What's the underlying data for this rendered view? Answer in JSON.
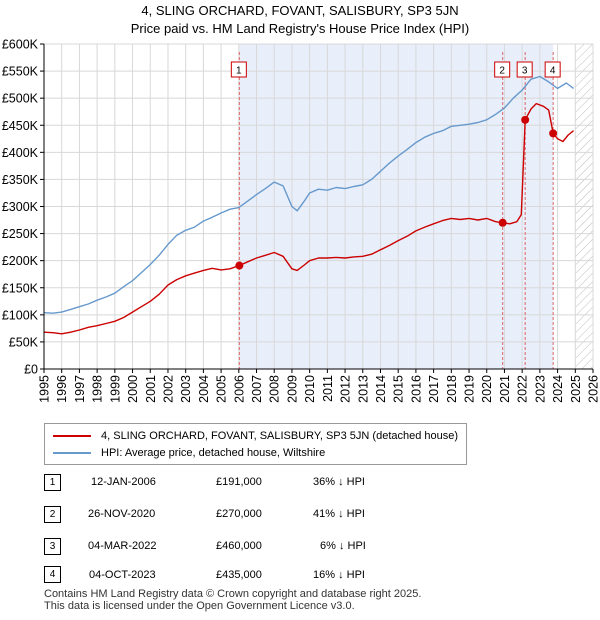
{
  "header": {
    "title_line1": "4, SLING ORCHARD, FOVANT, SALISBURY, SP3 5JN",
    "title_line2": "Price paid vs. HM Land Registry's House Price Index (HPI)"
  },
  "legend": {
    "red_label": "4, SLING ORCHARD, FOVANT, SALISBURY, SP3 5JN (detached house)",
    "blue_label": "HPI: Average price, detached house, Wiltshire"
  },
  "colors": {
    "red": "#cc0000",
    "blue": "#6699cc",
    "shade": "#e8eefa",
    "grid": "#d8d8d8",
    "marker_line": "#dd6666"
  },
  "transactions": [
    {
      "num": "1",
      "date": "12-JAN-2006",
      "price": "£191,000",
      "diff": "36% ↓ HPI"
    },
    {
      "num": "2",
      "date": "26-NOV-2020",
      "price": "£270,000",
      "diff": "41% ↓ HPI"
    },
    {
      "num": "3",
      "date": "04-MAR-2022",
      "price": "£460,000",
      "diff": "6% ↓ HPI"
    },
    {
      "num": "4",
      "date": "04-OCT-2023",
      "price": "£435,000",
      "diff": "16% ↓ HPI"
    }
  ],
  "footer": {
    "line1": "Contains HM Land Registry data © Crown copyright and database right 2025.",
    "line2": "This data is licensed under the Open Government Licence v3.0."
  },
  "chart_data": {
    "type": "line",
    "title": "4, SLING ORCHARD, FOVANT, SALISBURY, SP3 5JN",
    "subtitle": "Price paid vs. HM Land Registry's House Price Index (HPI)",
    "xlabel": "",
    "ylabel": "",
    "xlim": [
      1995,
      2026
    ],
    "ylim": [
      0,
      600000
    ],
    "x_ticks": [
      1995,
      1996,
      1997,
      1998,
      1999,
      2000,
      2001,
      2002,
      2003,
      2004,
      2005,
      2006,
      2007,
      2008,
      2009,
      2010,
      2011,
      2012,
      2013,
      2014,
      2015,
      2016,
      2017,
      2018,
      2019,
      2020,
      2021,
      2022,
      2023,
      2024,
      2025,
      2026
    ],
    "y_ticks": [
      0,
      50000,
      100000,
      150000,
      200000,
      250000,
      300000,
      350000,
      400000,
      450000,
      500000,
      550000,
      600000
    ],
    "y_tick_labels": [
      "£0",
      "£50K",
      "£100K",
      "£150K",
      "£200K",
      "£250K",
      "£300K",
      "£350K",
      "£400K",
      "£450K",
      "£500K",
      "£550K",
      "£600K"
    ],
    "grid": true,
    "shaded_period": [
      2006.03,
      2023.75
    ],
    "hatched_after": 2025.0,
    "sale_markers": [
      {
        "label": "1",
        "x": 2006.03,
        "y": 191000
      },
      {
        "label": "2",
        "x": 2020.9,
        "y": 270000
      },
      {
        "label": "3",
        "x": 2022.17,
        "y": 460000
      },
      {
        "label": "4",
        "x": 2023.75,
        "y": 435000
      }
    ],
    "series": [
      {
        "name": "4, SLING ORCHARD, FOVANT, SALISBURY, SP3 5JN (detached house)",
        "color": "#cc0000",
        "x": [
          1995,
          1995.5,
          1996,
          1996.5,
          1997,
          1997.5,
          1998,
          1998.5,
          1999,
          1999.5,
          2000,
          2000.5,
          2001,
          2001.5,
          2002,
          2002.5,
          2003,
          2003.5,
          2004,
          2004.5,
          2005,
          2005.5,
          2006.03,
          2006.5,
          2007,
          2007.5,
          2008,
          2008.5,
          2009,
          2009.3,
          2009.7,
          2010,
          2010.5,
          2011,
          2011.5,
          2012,
          2012.5,
          2013,
          2013.5,
          2014,
          2014.5,
          2015,
          2015.5,
          2016,
          2016.5,
          2017,
          2017.5,
          2018,
          2018.5,
          2019,
          2019.5,
          2020,
          2020.5,
          2020.9,
          2021.3,
          2021.7,
          2021.95,
          2022.17,
          2022.5,
          2022.8,
          2023.2,
          2023.5,
          2023.75,
          2024,
          2024.3,
          2024.6,
          2024.9
        ],
        "y": [
          68000,
          67000,
          65000,
          68000,
          72000,
          77000,
          80000,
          84000,
          88000,
          95000,
          105000,
          115000,
          125000,
          138000,
          155000,
          165000,
          172000,
          177000,
          182000,
          186000,
          183000,
          185000,
          191000,
          198000,
          205000,
          210000,
          215000,
          208000,
          185000,
          182000,
          192000,
          200000,
          205000,
          205000,
          206000,
          205000,
          207000,
          208000,
          212000,
          220000,
          228000,
          237000,
          245000,
          255000,
          262000,
          268000,
          274000,
          278000,
          276000,
          278000,
          275000,
          278000,
          272000,
          270000,
          268000,
          272000,
          285000,
          460000,
          480000,
          490000,
          485000,
          478000,
          435000,
          425000,
          420000,
          432000,
          440000
        ]
      },
      {
        "name": "HPI: Average price, detached house, Wiltshire",
        "color": "#6699cc",
        "x": [
          1995,
          1995.5,
          1996,
          1996.5,
          1997,
          1997.5,
          1998,
          1998.5,
          1999,
          1999.5,
          2000,
          2000.5,
          2001,
          2001.5,
          2002,
          2002.5,
          2003,
          2003.5,
          2004,
          2004.5,
          2005,
          2005.5,
          2006,
          2006.5,
          2007,
          2007.5,
          2008,
          2008.5,
          2009,
          2009.3,
          2009.7,
          2010,
          2010.5,
          2011,
          2011.5,
          2012,
          2012.5,
          2013,
          2013.5,
          2014,
          2014.5,
          2015,
          2015.5,
          2016,
          2016.5,
          2017,
          2017.5,
          2018,
          2018.5,
          2019,
          2019.5,
          2020,
          2020.5,
          2021,
          2021.5,
          2022,
          2022.5,
          2023,
          2023.5,
          2024,
          2024.5,
          2024.9
        ],
        "y": [
          104000,
          103000,
          105000,
          110000,
          115000,
          120000,
          127000,
          133000,
          140000,
          152000,
          163000,
          178000,
          193000,
          210000,
          230000,
          247000,
          256000,
          262000,
          273000,
          280000,
          288000,
          295000,
          298000,
          310000,
          322000,
          333000,
          345000,
          338000,
          300000,
          292000,
          310000,
          325000,
          332000,
          330000,
          335000,
          333000,
          337000,
          340000,
          350000,
          365000,
          380000,
          393000,
          405000,
          418000,
          428000,
          435000,
          440000,
          448000,
          450000,
          452000,
          455000,
          460000,
          470000,
          482000,
          500000,
          515000,
          535000,
          540000,
          530000,
          518000,
          528000,
          518000
        ]
      }
    ]
  }
}
